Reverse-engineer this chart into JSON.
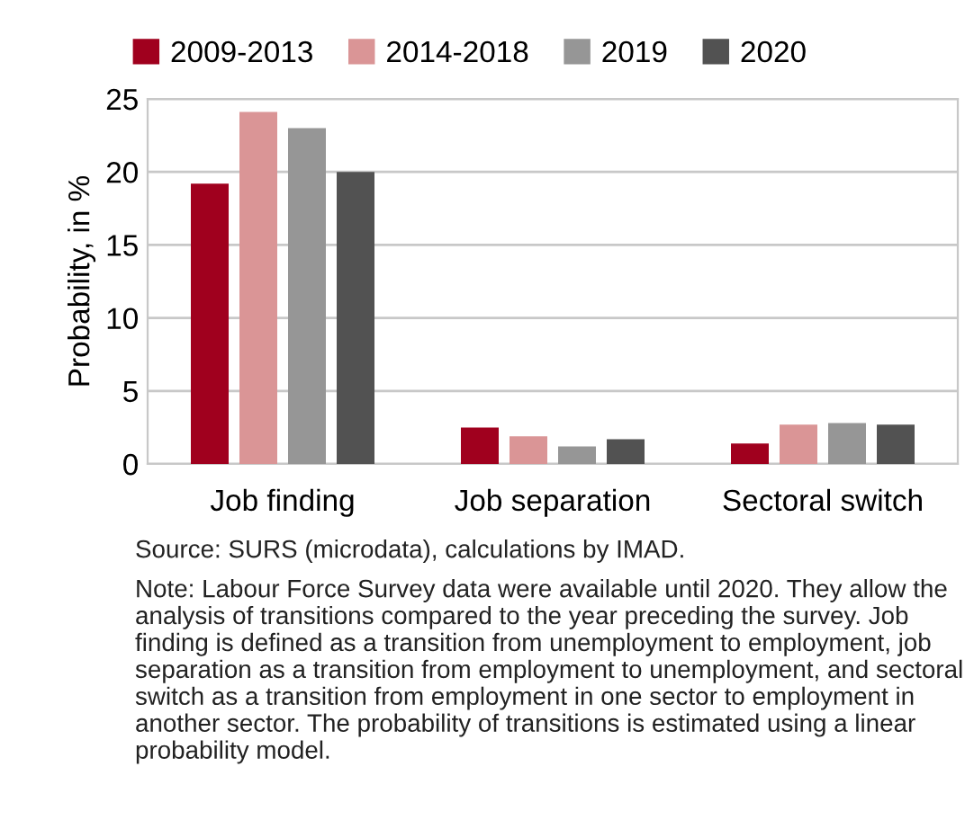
{
  "chart_data": {
    "type": "bar",
    "ylabel": "Probability, in %",
    "categories": [
      "Job finding",
      "Job separation",
      "Sectoral switch"
    ],
    "series": [
      {
        "name": "2009-2013",
        "color": "#a0001e",
        "values": [
          19.2,
          2.5,
          1.4
        ]
      },
      {
        "name": "2014-2018",
        "color": "#da9596",
        "values": [
          24.1,
          1.9,
          2.7
        ]
      },
      {
        "name": "2019",
        "color": "#969696",
        "values": [
          23.0,
          1.2,
          2.8
        ]
      },
      {
        "name": "2020",
        "color": "#525252",
        "values": [
          20.0,
          1.7,
          2.7
        ]
      }
    ],
    "ylim": [
      0,
      25
    ],
    "yticks": [
      0,
      5,
      10,
      15,
      20,
      25
    ],
    "grid": "y",
    "legend": "top",
    "annotations": [
      "Source: SURS (microdata), calculations by IMAD.",
      "Note: Labour Force Survey data were available until 2020. They allow the analysis of transitions compared to the year preceding the survey. Job finding is defined as a transition from unemployment to employment, job separation as a transition from employment to unemployment, and sectoral switch as a transition from employment in one sector to employment in another sector. The probability of transitions is estimated using a linear probability model."
    ]
  }
}
